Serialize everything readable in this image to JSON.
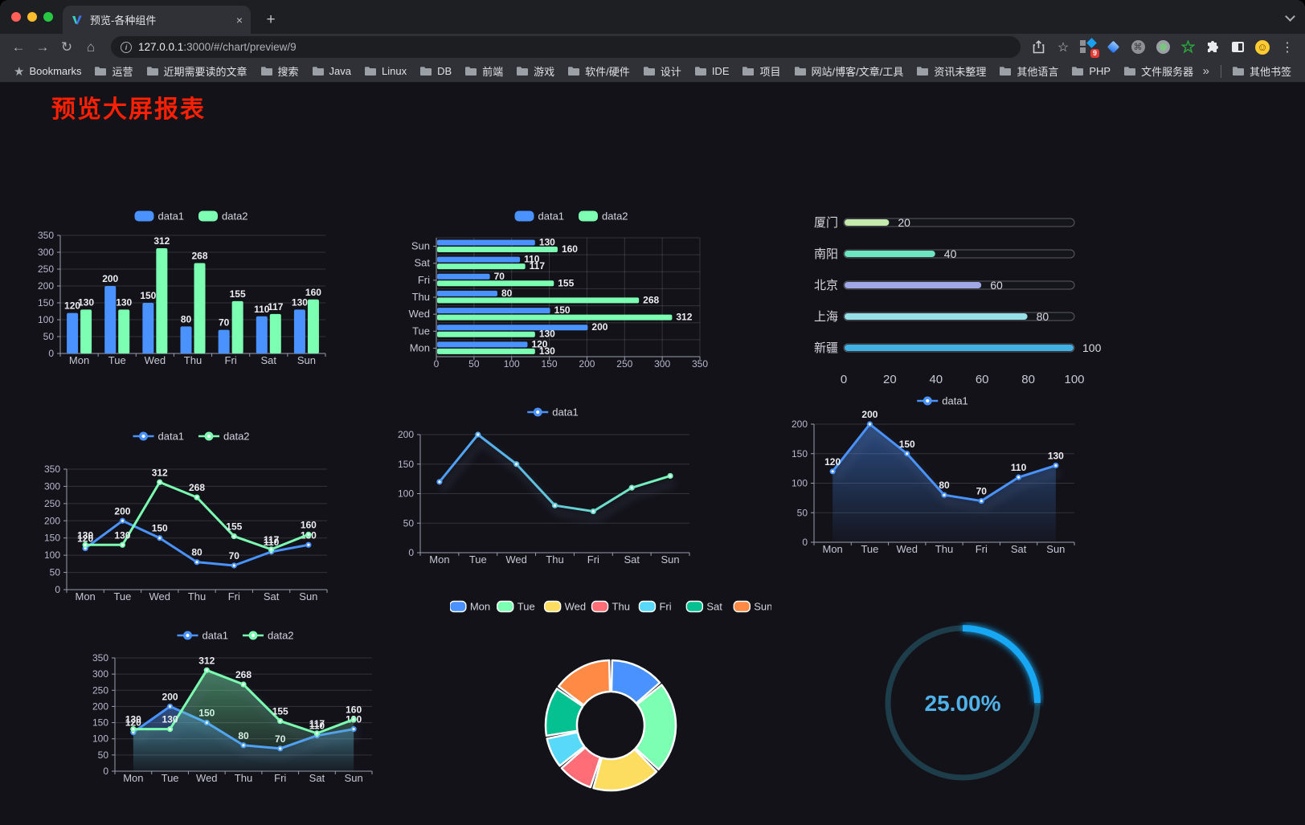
{
  "browser": {
    "traffic_lights": [
      "#ff5f57",
      "#febc2e",
      "#28c840"
    ],
    "tab": {
      "title": "预览-各种组件",
      "close": "×"
    },
    "new_tab_label": "+",
    "url": {
      "host": "127.0.0.1",
      "rest": ":3000/#/chart/preview/9"
    },
    "bookmarks_label": "Bookmarks",
    "bookmarks": [
      "运营",
      "近期需要读的文章",
      "搜索",
      "Java",
      "Linux",
      "DB",
      "前端",
      "游戏",
      "软件/硬件",
      "设计",
      "IDE",
      "项目",
      "网站/博客/文章/工具",
      "资讯未整理",
      "其他语言",
      "PHP",
      "文件服务器"
    ],
    "bookmarks_overflow": "»",
    "other_bookmarks": "其他书签",
    "extension_badge": "9",
    "cmd_glyph": "⌘",
    "smile_glyph": "☺"
  },
  "page": {
    "title": "预览大屏报表",
    "title_color": "#ff2000",
    "background": "#131219"
  },
  "chart_data": [
    {
      "id": "bar-vertical",
      "type": "bar",
      "categories": [
        "Mon",
        "Tue",
        "Wed",
        "Thu",
        "Fri",
        "Sat",
        "Sun"
      ],
      "series": [
        {
          "name": "data1",
          "color": "#4992ff",
          "values": [
            120,
            200,
            150,
            80,
            70,
            110,
            130
          ]
        },
        {
          "name": "data2",
          "color": "#7cffb2",
          "values": [
            130,
            130,
            312,
            268,
            155,
            117,
            160
          ]
        }
      ],
      "ylim": [
        0,
        350
      ],
      "ystep": 50,
      "value_labels": true,
      "legend_position": "top",
      "grid": true
    },
    {
      "id": "bar-horizontal",
      "type": "bar-horizontal",
      "categories": [
        "Mon",
        "Tue",
        "Wed",
        "Thu",
        "Fri",
        "Sat",
        "Sun"
      ],
      "series": [
        {
          "name": "data1",
          "color": "#4992ff",
          "values": [
            120,
            200,
            150,
            80,
            70,
            110,
            130
          ]
        },
        {
          "name": "data2",
          "color": "#7cffb2",
          "values": [
            130,
            130,
            312,
            268,
            155,
            117,
            160
          ]
        }
      ],
      "xlim": [
        0,
        350
      ],
      "xstep": 50,
      "value_labels": true,
      "legend_position": "top",
      "grid": true
    },
    {
      "id": "progress",
      "type": "progress",
      "rows": [
        {
          "label": "厦门",
          "value": 20,
          "color": "#c4ebad"
        },
        {
          "label": "南阳",
          "value": 40,
          "color": "#6be6c1"
        },
        {
          "label": "北京",
          "value": 60,
          "color": "#a0a7e6"
        },
        {
          "label": "上海",
          "value": 80,
          "color": "#96dee8"
        },
        {
          "label": "新疆",
          "value": 100,
          "color": "#3fb1e3"
        }
      ],
      "xlim": [
        0,
        100
      ],
      "xticks": [
        0,
        20,
        40,
        60,
        80,
        100
      ]
    },
    {
      "id": "line-two",
      "type": "line",
      "categories": [
        "Mon",
        "Tue",
        "Wed",
        "Thu",
        "Fri",
        "Sat",
        "Sun"
      ],
      "series": [
        {
          "name": "data1",
          "color": "#4992ff",
          "values": [
            120,
            200,
            150,
            80,
            70,
            110,
            130
          ]
        },
        {
          "name": "data2",
          "color": "#7cffb2",
          "values": [
            130,
            130,
            312,
            268,
            155,
            117,
            160
          ]
        }
      ],
      "ylim": [
        0,
        350
      ],
      "ystep": 50,
      "value_labels": true,
      "shadow": false,
      "legend_position": "top",
      "grid": true
    },
    {
      "id": "line-gradient",
      "type": "line",
      "categories": [
        "Mon",
        "Tue",
        "Wed",
        "Thu",
        "Fri",
        "Sat",
        "Sun"
      ],
      "series": [
        {
          "name": "data1",
          "color": "#4992ff",
          "color_end": "#7cffb2",
          "values": [
            120,
            200,
            150,
            80,
            70,
            110,
            130
          ]
        }
      ],
      "ylim": [
        0,
        200
      ],
      "ystep": 50,
      "value_labels": false,
      "shadow": true,
      "legend_position": "top",
      "grid": true
    },
    {
      "id": "line-area",
      "type": "line",
      "categories": [
        "Mon",
        "Tue",
        "Wed",
        "Thu",
        "Fri",
        "Sat",
        "Sun"
      ],
      "series": [
        {
          "name": "data1",
          "color": "#4992ff",
          "area": true,
          "values": [
            120,
            200,
            150,
            80,
            70,
            110,
            130
          ]
        }
      ],
      "ylim": [
        0,
        200
      ],
      "ystep": 50,
      "value_labels": true,
      "shadow": true,
      "legend_position": "top",
      "grid": true
    },
    {
      "id": "area-two",
      "type": "line",
      "categories": [
        "Mon",
        "Tue",
        "Wed",
        "Thu",
        "Fri",
        "Sat",
        "Sun"
      ],
      "series": [
        {
          "name": "data1",
          "color": "#4992ff",
          "area": true,
          "values": [
            120,
            200,
            150,
            80,
            70,
            110,
            130
          ]
        },
        {
          "name": "data2",
          "color": "#7cffb2",
          "area": true,
          "values": [
            130,
            130,
            312,
            268,
            155,
            117,
            160
          ]
        }
      ],
      "ylim": [
        0,
        350
      ],
      "ystep": 50,
      "value_labels": true,
      "shadow": true,
      "legend_position": "top",
      "grid": true
    },
    {
      "id": "donut",
      "type": "pie",
      "items": [
        {
          "label": "Mon",
          "value": 120,
          "color": "#4992ff"
        },
        {
          "label": "Tue",
          "value": 200,
          "color": "#7cffb2"
        },
        {
          "label": "Wed",
          "value": 150,
          "color": "#fddd60"
        },
        {
          "label": "Thu",
          "value": 80,
          "color": "#ff6e76"
        },
        {
          "label": "Fri",
          "value": 70,
          "color": "#58d9f9"
        },
        {
          "label": "Sat",
          "value": 110,
          "color": "#05c091"
        },
        {
          "label": "Sun",
          "value": 130,
          "color": "#ff8a45"
        }
      ],
      "inner_radius": 42,
      "outer_radius": 81,
      "border_color": "#ffffff",
      "legend_position": "top"
    },
    {
      "id": "gauge",
      "type": "gauge",
      "value": 25,
      "max": 100,
      "label": "25.00%",
      "progress_color": "#18a7f2",
      "track_color": "#1e3d4a",
      "text_color": "#4fb1e8"
    }
  ]
}
